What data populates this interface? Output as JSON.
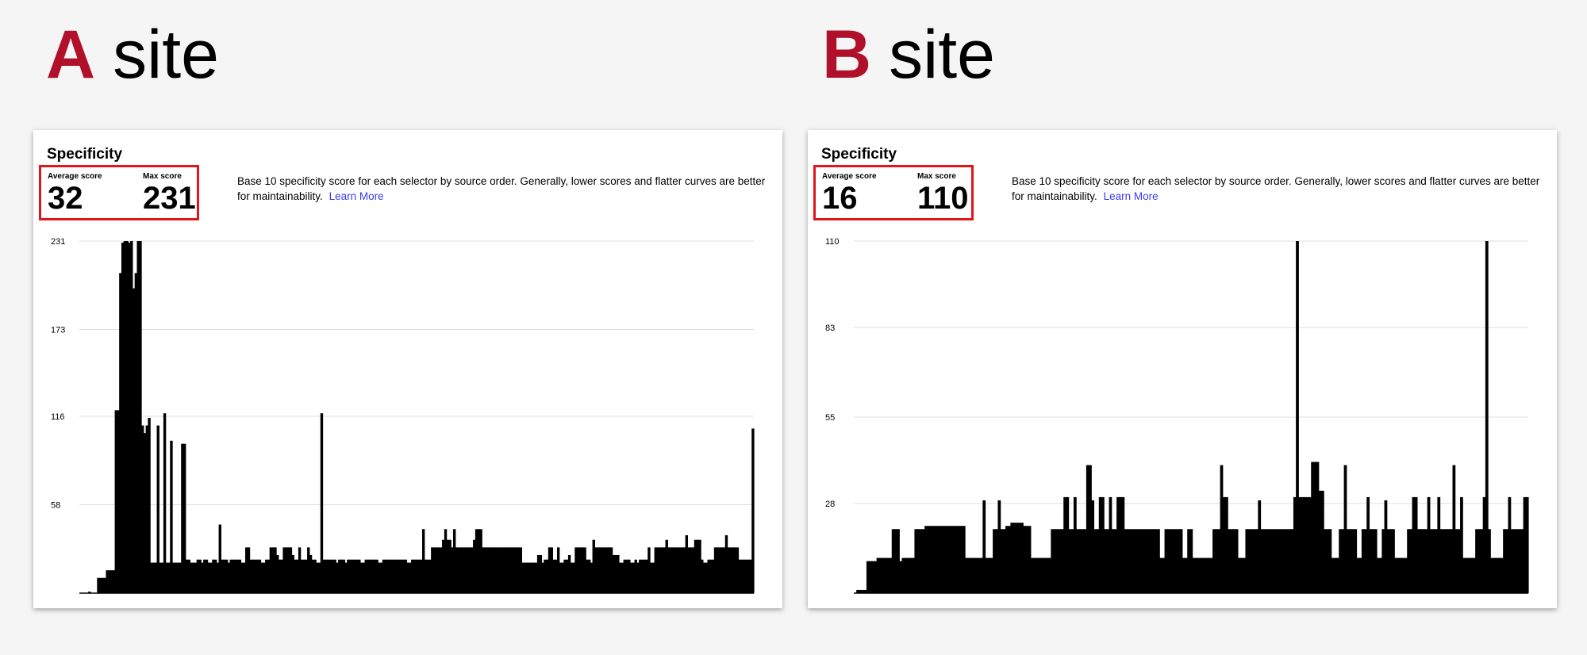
{
  "sites": [
    {
      "letter": "A",
      "word": "site",
      "heading": "Specificity",
      "average_label": "Average score",
      "average_value": "32",
      "max_label": "Max score",
      "max_value": "231",
      "description": "Base 10 specificity score for each selector by source order. Generally, lower scores and flatter curves are better for maintainability.",
      "learn_more": "Learn More",
      "ticks": [
        "231",
        "173",
        "116",
        "58"
      ]
    },
    {
      "letter": "B",
      "word": "site",
      "heading": "Specificity",
      "average_label": "Average score",
      "average_value": "16",
      "max_label": "Max score",
      "max_value": "110",
      "description": "Base 10 specificity score for each selector by source order. Generally, lower scores and flatter curves are better for maintainability.",
      "learn_more": "Learn More",
      "ticks": [
        "110",
        "83",
        "55",
        "28"
      ]
    }
  ],
  "colors": {
    "letter": "#b0102a",
    "highlight_box": "#e3151b",
    "link": "#3b3bf0",
    "bars": "#000000"
  },
  "chart_data": [
    {
      "type": "bar",
      "title": "Specificity",
      "xlabel": "",
      "ylabel": "",
      "ylim": [
        0,
        231
      ],
      "yticks": [
        58,
        116,
        173,
        231
      ],
      "grid": true,
      "color": "#000000",
      "series": [
        {
          "values": [
            0,
            0,
            0,
            0,
            1,
            0,
            0,
            0,
            10,
            10,
            10,
            10,
            15,
            15,
            15,
            15,
            120,
            120,
            210,
            230,
            231,
            231,
            230,
            231,
            200,
            210,
            231,
            231,
            110,
            105,
            110,
            115,
            20,
            20,
            20,
            110,
            20,
            20,
            118,
            20,
            20,
            100,
            20,
            20,
            20,
            20,
            98,
            98,
            22,
            22,
            20,
            20,
            20,
            22,
            22,
            20,
            22,
            22,
            20,
            20,
            22,
            22,
            20,
            45,
            22,
            22,
            22,
            20,
            22,
            22,
            22,
            22,
            22,
            20,
            20,
            30,
            30,
            22,
            22,
            22,
            22,
            22,
            20,
            20,
            22,
            22,
            30,
            30,
            30,
            25,
            22,
            22,
            30,
            30,
            30,
            30,
            25,
            22,
            22,
            30,
            22,
            22,
            22,
            30,
            25,
            22,
            22,
            20,
            20,
            118,
            22,
            22,
            22,
            22,
            22,
            22,
            20,
            22,
            22,
            22,
            20,
            22,
            22,
            22,
            22,
            22,
            22,
            20,
            20,
            22,
            22,
            22,
            22,
            22,
            22,
            20,
            20,
            22,
            22,
            22,
            22,
            22,
            22,
            22,
            22,
            22,
            22,
            22,
            20,
            20,
            22,
            22,
            22,
            22,
            22,
            42,
            22,
            22,
            22,
            30,
            30,
            30,
            30,
            30,
            35,
            42,
            35,
            35,
            30,
            42,
            30,
            30,
            30,
            30,
            30,
            30,
            30,
            30,
            35,
            42,
            42,
            42,
            30,
            30,
            30,
            30,
            30,
            30,
            30,
            30,
            30,
            30,
            30,
            30,
            30,
            30,
            30,
            30,
            30,
            30,
            20,
            20,
            20,
            20,
            20,
            20,
            20,
            25,
            25,
            20,
            22,
            22,
            30,
            30,
            22,
            22,
            30,
            20,
            20,
            22,
            22,
            25,
            20,
            20,
            30,
            30,
            30,
            30,
            30,
            22,
            22,
            20,
            35,
            30,
            30,
            30,
            30,
            30,
            30,
            30,
            30,
            25,
            25,
            25,
            20,
            20,
            22,
            22,
            22,
            20,
            20,
            22,
            20,
            22,
            22,
            22,
            22,
            30,
            20,
            20,
            30,
            30,
            30,
            30,
            30,
            35,
            30,
            30,
            30,
            30,
            30,
            30,
            30,
            30,
            38,
            30,
            30,
            30,
            35,
            35,
            35,
            22,
            20,
            20,
            22,
            22,
            22,
            30,
            30,
            30,
            30,
            30,
            38,
            30,
            30,
            30,
            30,
            30,
            22,
            22,
            22,
            22,
            22,
            22,
            108
          ]
        }
      ]
    },
    {
      "type": "bar",
      "title": "Specificity",
      "xlabel": "",
      "ylabel": "",
      "ylim": [
        0,
        110
      ],
      "yticks": [
        28,
        55,
        83,
        110
      ],
      "grid": true,
      "color": "#000000",
      "series": [
        {
          "values": [
            0,
            1,
            1,
            1,
            1,
            10,
            10,
            10,
            10,
            11,
            11,
            11,
            11,
            11,
            11,
            20,
            20,
            20,
            10,
            11,
            11,
            11,
            11,
            11,
            20,
            20,
            20,
            20,
            21,
            21,
            21,
            21,
            21,
            21,
            21,
            21,
            21,
            21,
            21,
            21,
            21,
            21,
            21,
            21,
            11,
            11,
            11,
            11,
            11,
            11,
            11,
            29,
            11,
            11,
            11,
            20,
            20,
            29,
            20,
            20,
            21,
            21,
            22,
            22,
            22,
            22,
            22,
            21,
            21,
            21,
            11,
            11,
            11,
            11,
            11,
            11,
            11,
            11,
            20,
            20,
            20,
            20,
            20,
            30,
            30,
            20,
            20,
            30,
            20,
            20,
            20,
            20,
            40,
            40,
            29,
            20,
            20,
            30,
            30,
            20,
            20,
            30,
            20,
            20,
            30,
            30,
            30,
            20,
            20,
            20,
            20,
            20,
            20,
            20,
            20,
            20,
            20,
            20,
            20,
            20,
            20,
            11,
            11,
            20,
            20,
            20,
            20,
            20,
            20,
            20,
            11,
            11,
            20,
            20,
            11,
            11,
            11,
            11,
            11,
            11,
            11,
            11,
            20,
            20,
            20,
            40,
            30,
            30,
            20,
            20,
            20,
            20,
            11,
            11,
            11,
            20,
            20,
            20,
            20,
            20,
            29,
            20,
            20,
            20,
            20,
            20,
            20,
            20,
            20,
            20,
            20,
            20,
            20,
            20,
            30,
            110,
            30,
            30,
            30,
            30,
            30,
            41,
            41,
            41,
            32,
            32,
            20,
            20,
            20,
            11,
            11,
            11,
            20,
            20,
            40,
            20,
            20,
            20,
            20,
            11,
            11,
            20,
            20,
            30,
            20,
            20,
            20,
            11,
            11,
            20,
            29,
            20,
            20,
            20,
            11,
            11,
            11,
            11,
            11,
            20,
            20,
            30,
            30,
            20,
            20,
            20,
            20,
            30,
            20,
            20,
            20,
            30,
            20,
            20,
            20,
            20,
            20,
            40,
            20,
            20,
            30,
            11,
            11,
            11,
            11,
            11,
            20,
            20,
            20,
            30,
            110,
            20,
            11,
            11,
            11,
            11,
            11,
            20,
            20,
            30,
            20,
            20,
            20,
            20,
            20,
            30,
            30
          ]
        }
      ]
    }
  ]
}
